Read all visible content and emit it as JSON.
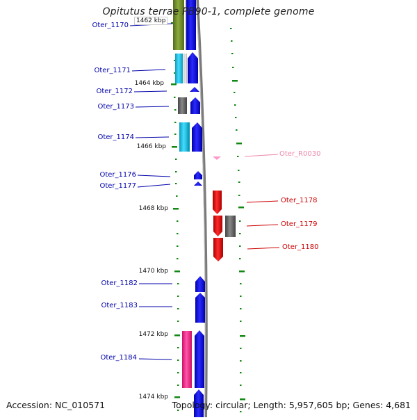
{
  "title": "Opitutus terrae PB90-1, complete genome",
  "footer": {
    "accession": "Accession: NC_010571",
    "topology": "Topology: circular; Length: 5,957,605 bp; Genes: 4,681"
  },
  "axis_labels": [
    "1462 kbp",
    "1464 kbp",
    "1466 kbp",
    "1468 kbp",
    "1470 kbp",
    "1472 kbp",
    "1474 kbp"
  ],
  "genes_left": [
    {
      "name": "Oter_1170",
      "color": "#0000aa"
    },
    {
      "name": "Oter_1171",
      "color": "#0000aa"
    },
    {
      "name": "Oter_1172",
      "color": "#0000aa"
    },
    {
      "name": "Oter_1173",
      "color": "#0000aa"
    },
    {
      "name": "Oter_1174",
      "color": "#0000aa"
    },
    {
      "name": "Oter_1176",
      "color": "#0000aa"
    },
    {
      "name": "Oter_1177",
      "color": "#0000aa"
    },
    {
      "name": "Oter_1182",
      "color": "#0000aa"
    },
    {
      "name": "Oter_1183",
      "color": "#0000aa"
    },
    {
      "name": "Oter_1184",
      "color": "#0000aa"
    }
  ],
  "genes_right": [
    {
      "name": "Oter_R0030",
      "color": "#ee88aa"
    },
    {
      "name": "Oter_1178",
      "color": "#cc0000"
    },
    {
      "name": "Oter_1179",
      "color": "#cc0000"
    },
    {
      "name": "Oter_1180",
      "color": "#cc0000"
    }
  ],
  "colors": {
    "forward_strand": "#0000ee",
    "reverse_strand": "#ee0000",
    "olive_cog": "#7a9a2a",
    "cyan_cog": "#22ccee",
    "gray_cog": "#666666",
    "pink_cog": "#ff3399",
    "tick_green": "#118811",
    "backbone": "#888888"
  }
}
